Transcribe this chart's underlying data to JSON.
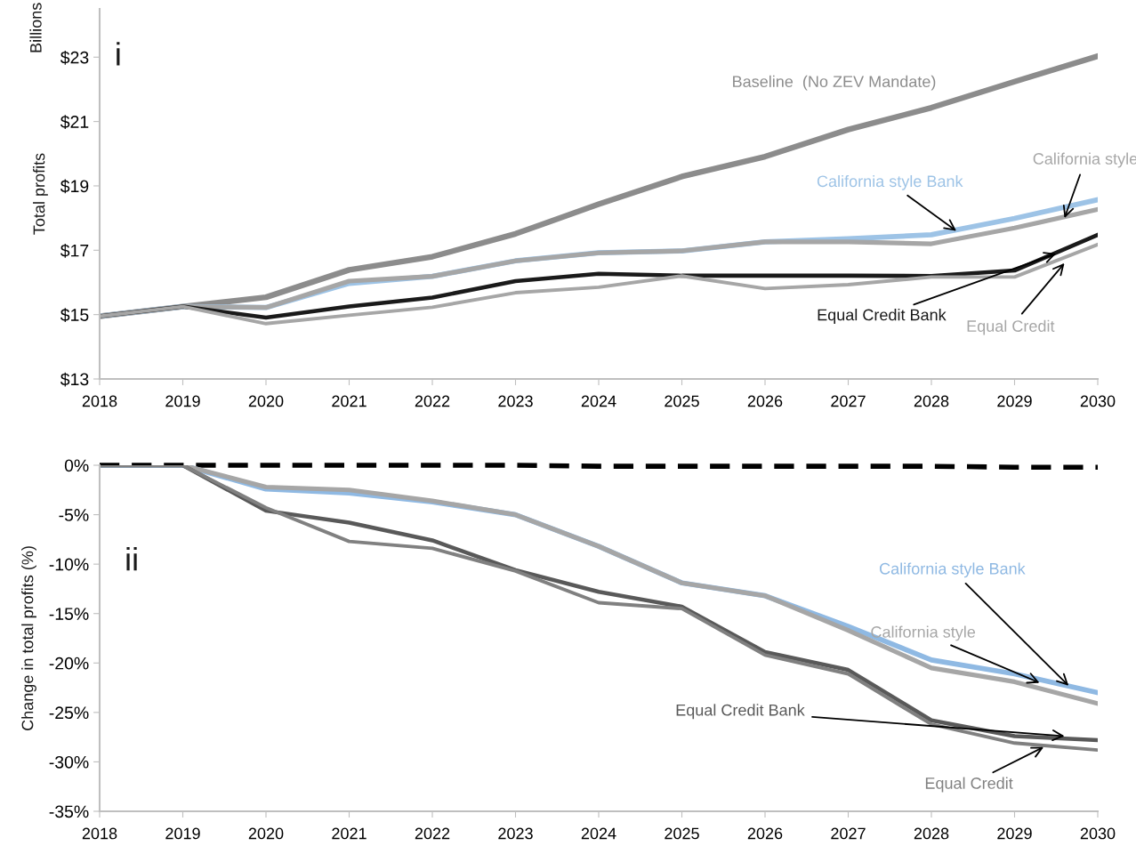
{
  "chart_data": [
    {
      "type": "line",
      "ylabel": "Total profits",
      "annotations": [
        "Billions",
        "i"
      ],
      "x": [
        2018,
        2019,
        2020,
        2021,
        2022,
        2023,
        2024,
        2025,
        2026,
        2027,
        2028,
        2029,
        2030
      ],
      "xlim": [
        2018,
        2030
      ],
      "xticks": [
        2018,
        2019,
        2020,
        2021,
        2022,
        2023,
        2024,
        2025,
        2026,
        2027,
        2028,
        2029,
        2030
      ],
      "ylim": [
        13,
        24.5
      ],
      "yticks": [
        {
          "value": 13,
          "label": "$13"
        },
        {
          "value": 15,
          "label": "$15"
        },
        {
          "value": 17,
          "label": "$17"
        },
        {
          "value": 19,
          "label": "$19"
        },
        {
          "value": 21,
          "label": "$21"
        },
        {
          "value": 23,
          "label": "$23"
        }
      ],
      "grid": false,
      "legend": false,
      "line_style": "solid",
      "marker": "none",
      "series": [
        {
          "name": "Baseline  (No ZEV Mandate)",
          "color": "#8c8c8c",
          "values": [
            14.95,
            15.25,
            15.54,
            16.39,
            16.8,
            17.51,
            18.43,
            19.29,
            19.91,
            20.75,
            21.43,
            22.24,
            23.03
          ]
        },
        {
          "name": "California style Bank",
          "color": "#9dc3e6",
          "values": [
            14.95,
            15.25,
            15.22,
            15.97,
            16.19,
            16.67,
            16.92,
            16.98,
            17.26,
            17.36,
            17.48,
            17.99,
            18.57
          ]
        },
        {
          "name": "California style",
          "color": "#a6a6a6",
          "values": [
            14.95,
            15.25,
            15.22,
            16.04,
            16.19,
            16.67,
            16.92,
            16.98,
            17.26,
            17.26,
            17.2,
            17.69,
            18.27
          ]
        },
        {
          "name": "Equal Credit Bank",
          "color": "#1a1a1a",
          "values": [
            14.95,
            15.25,
            14.91,
            15.25,
            15.53,
            16.04,
            16.27,
            16.21,
            16.21,
            16.21,
            16.2,
            16.37,
            17.48
          ]
        },
        {
          "name": "Equal Credit",
          "color": "#a6a6a6",
          "values": [
            14.95,
            15.25,
            14.72,
            14.98,
            15.23,
            15.68,
            15.85,
            16.2,
            15.81,
            15.93,
            16.17,
            16.17,
            17.18
          ]
        }
      ]
    },
    {
      "type": "line",
      "ylabel": "Change in total profits (%)",
      "annotations": [
        "ii"
      ],
      "x": [
        2018,
        2019,
        2020,
        2021,
        2022,
        2023,
        2024,
        2025,
        2026,
        2027,
        2028,
        2029,
        2030
      ],
      "xlim": [
        2018,
        2030
      ],
      "xticks": [
        2018,
        2019,
        2020,
        2021,
        2022,
        2023,
        2024,
        2025,
        2026,
        2027,
        2028,
        2029,
        2030
      ],
      "ylim": [
        -35,
        0
      ],
      "yticks": [
        {
          "value": -35,
          "label": "-35%"
        },
        {
          "value": -30,
          "label": "-30%"
        },
        {
          "value": -25,
          "label": "-25%"
        },
        {
          "value": -20,
          "label": "-20%"
        },
        {
          "value": -15,
          "label": "-15%"
        },
        {
          "value": -10,
          "label": "-10%"
        },
        {
          "value": -5,
          "label": "-5%"
        },
        {
          "value": 0,
          "label": "0%"
        }
      ],
      "grid": false,
      "legend": false,
      "marker": "none",
      "series": [
        {
          "color": "#000000",
          "line_style": "dashed",
          "values": [
            0,
            0,
            0,
            0,
            0,
            0,
            -0.1,
            -0.1,
            -0.1,
            -0.1,
            -0.1,
            -0.2,
            -0.2
          ]
        },
        {
          "name": "California style Bank",
          "color": "#8fb9e3",
          "line_style": "solid",
          "values": [
            0,
            0,
            -2.4,
            -2.8,
            -3.7,
            -5.0,
            -8.2,
            -11.9,
            -13.2,
            -16.3,
            -19.7,
            -21.1,
            -23.0
          ]
        },
        {
          "name": "California style",
          "color": "#a6a6a6",
          "line_style": "solid",
          "values": [
            0,
            0,
            -2.2,
            -2.5,
            -3.6,
            -5.0,
            -8.2,
            -11.9,
            -13.2,
            -16.7,
            -20.5,
            -21.9,
            -24.1
          ]
        },
        {
          "name": "Equal Credit Bank",
          "color": "#595959",
          "line_style": "solid",
          "values": [
            0,
            0,
            -4.6,
            -5.8,
            -7.6,
            -10.6,
            -12.8,
            -14.3,
            -18.9,
            -20.7,
            -25.8,
            -27.4,
            -27.8
          ]
        },
        {
          "name": "Equal Credit",
          "color": "#808080",
          "line_style": "solid",
          "values": [
            0,
            0,
            -4.3,
            -7.7,
            -8.4,
            -10.7,
            -13.9,
            -14.5,
            -19.2,
            -21.1,
            -26.2,
            -28.1,
            -28.8
          ]
        }
      ]
    }
  ]
}
